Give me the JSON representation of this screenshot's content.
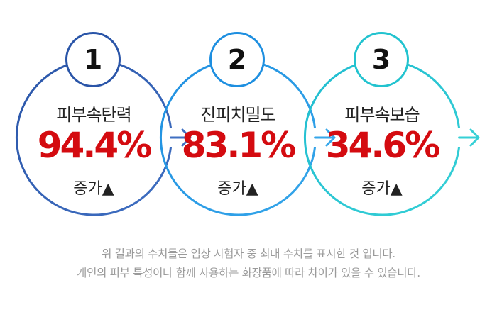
{
  "steps": [
    {
      "number": "1",
      "title": "피부속탄력",
      "value": "94.4%",
      "change": "증가▲",
      "color": "#2a55a8"
    },
    {
      "number": "2",
      "title": "진피치밀도",
      "value": "83.1%",
      "change": "증가▲",
      "color": "#1e8fe0"
    },
    {
      "number": "3",
      "title": "피부속보습",
      "value": "34.6%",
      "change": "증가▲",
      "color": "#22c3cf"
    }
  ],
  "footnote": {
    "line1": "위 결과의 수치들은 임상 시험자 중 최대 수치를 표시한 것 입니다.",
    "line2": "개인의 피부 특성이나 함께 사용하는 화장품에 따라 차이가 있을 수 있습니다."
  },
  "accent_red": "#d40b10"
}
